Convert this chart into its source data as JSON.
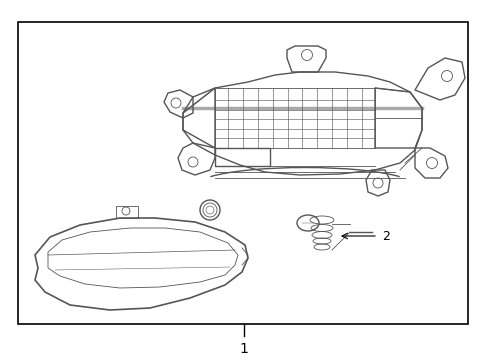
{
  "background_color": "#ffffff",
  "border_color": "#000000",
  "line_color": "#555555",
  "border_linewidth": 1.2,
  "part_linewidth": 1.0,
  "thin_linewidth": 0.6,
  "label_1": "1",
  "label_2": "2",
  "fig_width": 4.89,
  "fig_height": 3.6,
  "dpi": 100
}
